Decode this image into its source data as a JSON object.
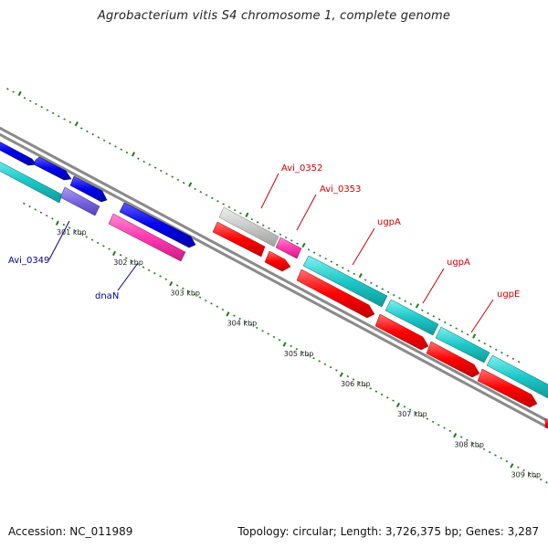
{
  "title": "Agrobacterium vitis S4 chromosome 1, complete genome",
  "footer": {
    "accession": "Accession: NC_011989",
    "summary": "Topology: circular; Length: 3,726,375 bp; Genes: 3,287"
  },
  "colors": {
    "backbone": "#8a8a8a",
    "ticks": "#1f7a1f",
    "label_blue": "#00008b",
    "label_red": "#cc0000",
    "gene_blue": "#0000ee",
    "gene_cyan": "#1ec8c8",
    "gene_red": "#ff0000",
    "gene_magenta": "#ff3ab0",
    "gene_grey": "#c8c8c8",
    "gene_purple": "#7a66e0"
  },
  "scale": {
    "unit": "kbp",
    "major_ticks": [
      {
        "position_kbp": 301,
        "label": "301 kbp"
      },
      {
        "position_kbp": 302,
        "label": "302 kbp"
      },
      {
        "position_kbp": 303,
        "label": "303 kbp"
      },
      {
        "position_kbp": 304,
        "label": "304 kbp"
      },
      {
        "position_kbp": 305,
        "label": "305 kbp"
      },
      {
        "position_kbp": 306,
        "label": "306 kbp"
      },
      {
        "position_kbp": 307,
        "label": "307 kbp"
      },
      {
        "position_kbp": 308,
        "label": "308 kbp"
      },
      {
        "position_kbp": 309,
        "label": "309 kbp"
      }
    ]
  },
  "gene_labels": [
    {
      "name": "Avi_0349",
      "color": "label_blue"
    },
    {
      "name": "dnaN",
      "color": "label_blue"
    },
    {
      "name": "Avi_0352",
      "color": "label_red"
    },
    {
      "name": "Avi_0353",
      "color": "label_red"
    },
    {
      "name": "ugpA",
      "color": "label_red"
    },
    {
      "name": "ugpA",
      "color": "label_red"
    },
    {
      "name": "ugpE",
      "color": "label_red"
    }
  ]
}
